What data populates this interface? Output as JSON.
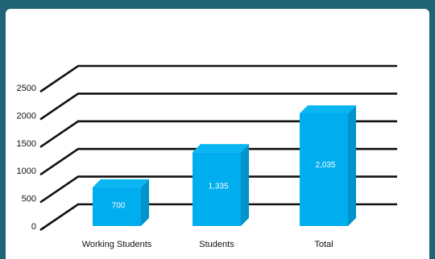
{
  "chart_data": {
    "type": "bar",
    "categories": [
      "Working Students",
      "Students",
      "Total"
    ],
    "values": [
      700,
      1335,
      2035
    ],
    "data_labels": [
      "700",
      "1,335",
      "2,035"
    ],
    "title": "",
    "xlabel": "",
    "ylabel": "",
    "ylim": [
      0,
      2500
    ],
    "yticks": [
      0,
      500,
      1000,
      1500,
      2000,
      2500
    ],
    "grid": true,
    "style": "3d-perspective",
    "bar_color": "#00aeef",
    "grid_color": "#111111",
    "background": "#ffffff",
    "frame_color": "#1e6474"
  }
}
